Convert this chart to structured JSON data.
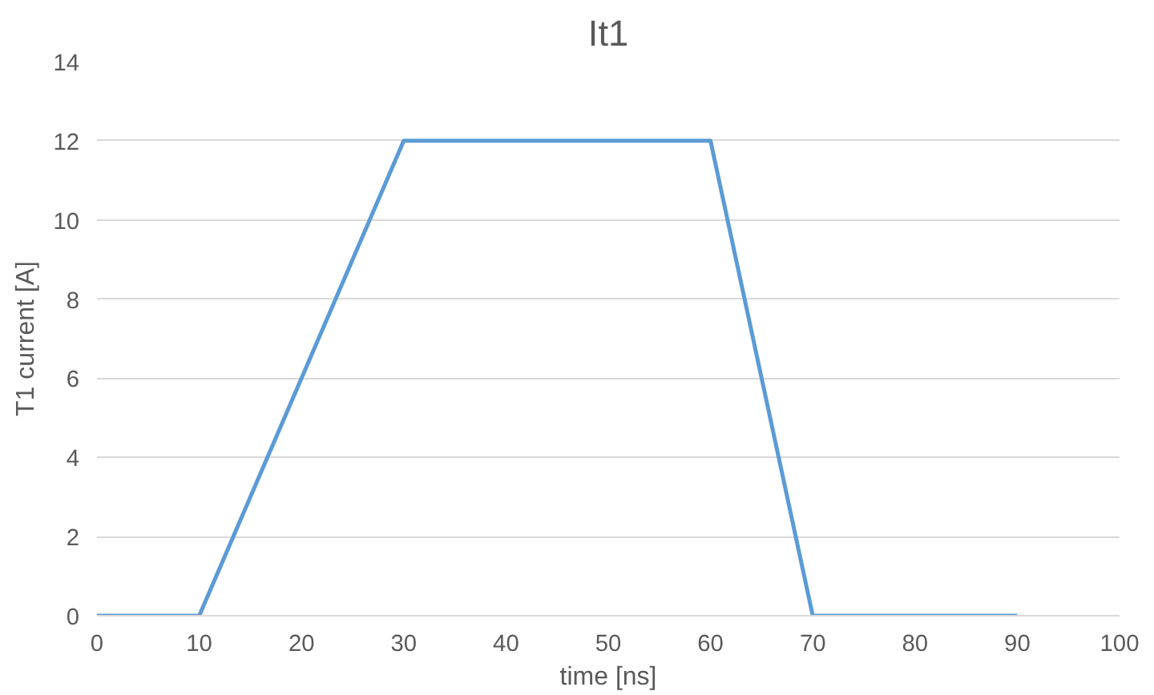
{
  "chart_data": {
    "type": "line",
    "title": "It1",
    "xlabel": "time [ns]",
    "ylabel": "T1 current [A]",
    "x": [
      0,
      10,
      30,
      60,
      70,
      90
    ],
    "series": [
      {
        "color": "#5b9bd5",
        "values": [
          0,
          0,
          12,
          12,
          0,
          0
        ]
      }
    ],
    "xlim": [
      0,
      100
    ],
    "xticks": [
      0,
      10,
      20,
      30,
      40,
      50,
      60,
      70,
      80,
      90,
      100
    ],
    "ylim": [
      0,
      14
    ],
    "yticks": [
      0,
      2,
      4,
      6,
      8,
      10,
      12,
      14
    ],
    "grid": "y",
    "marker": "none",
    "line_style": "solid"
  }
}
